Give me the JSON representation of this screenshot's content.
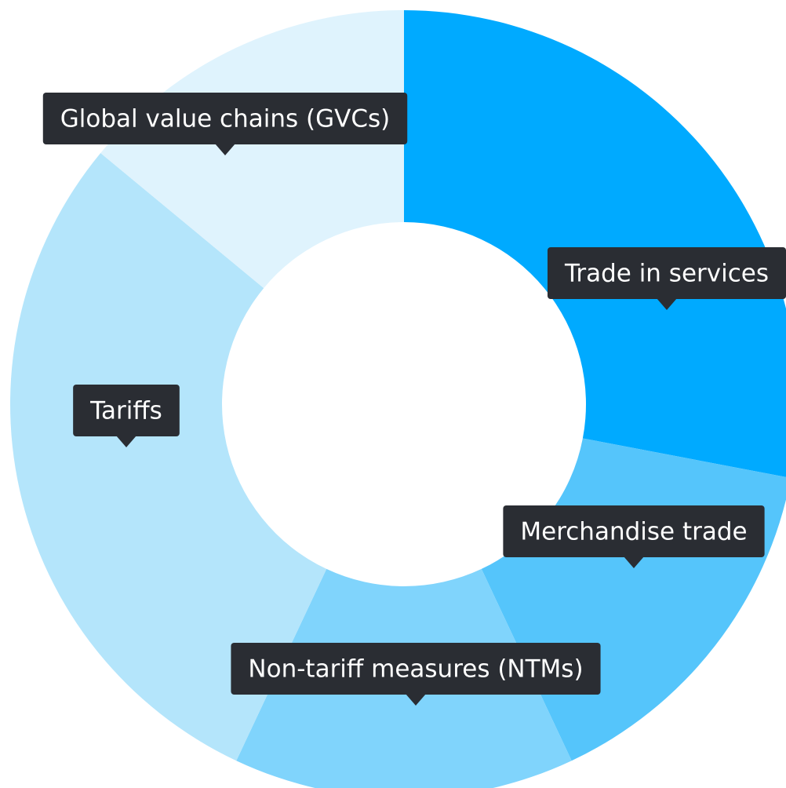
{
  "chart_data": {
    "type": "donut",
    "categories": [
      "Trade in services",
      "Merchandise trade",
      "Non-tariff measures (NTMs)",
      "Tariffs",
      "Global value chains (GVCs)"
    ],
    "values": [
      28,
      15,
      14,
      29,
      14
    ],
    "colors": [
      "#00aaff",
      "#55c5fb",
      "#80d4fc",
      "#b4e5fb",
      "#dff3fd"
    ]
  }
}
